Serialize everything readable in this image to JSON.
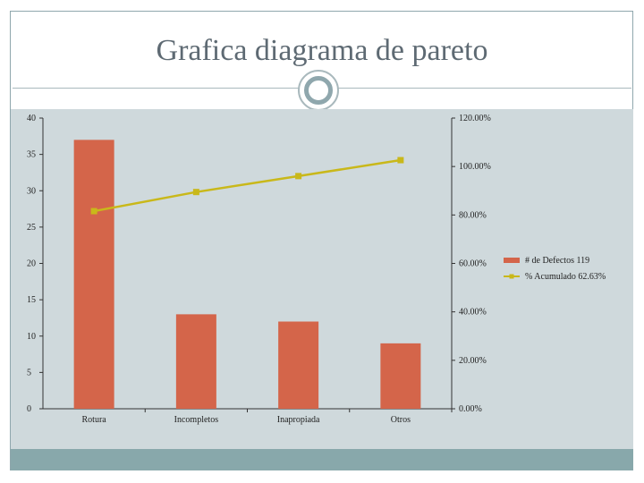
{
  "slide": {
    "title": "Grafica diagrama de pareto"
  },
  "colors": {
    "bar": "#d4654a",
    "line": "#c9b81a",
    "plot_bg": "#cfd9dc",
    "footer": "#88a8ab"
  },
  "chart_data": {
    "type": "bar",
    "title": "",
    "xlabel": "",
    "ylabel": "",
    "categories": [
      "Rotura",
      "Incompletos",
      "Inapropiada",
      "Otros"
    ],
    "series": [
      {
        "name": "# de Defectos 119",
        "kind": "bar",
        "axis": "left",
        "values": [
          37,
          13,
          12,
          9
        ]
      },
      {
        "name": "% Acumulado 62.63%",
        "kind": "line",
        "axis": "right",
        "values": [
          0.8158,
          0.8947,
          0.9605,
          1.0263
        ]
      }
    ],
    "ylim_left": [
      0,
      40
    ],
    "yticks_left": [
      "0",
      "5",
      "10",
      "15",
      "20",
      "25",
      "30",
      "35",
      "40"
    ],
    "ylim_right": [
      0,
      1.2
    ],
    "yticks_right": [
      "0.00%",
      "20.00%",
      "40.00%",
      "60.00%",
      "80.00%",
      "100.00%",
      "120.00%"
    ],
    "grid": false,
    "legend_position": "right"
  }
}
